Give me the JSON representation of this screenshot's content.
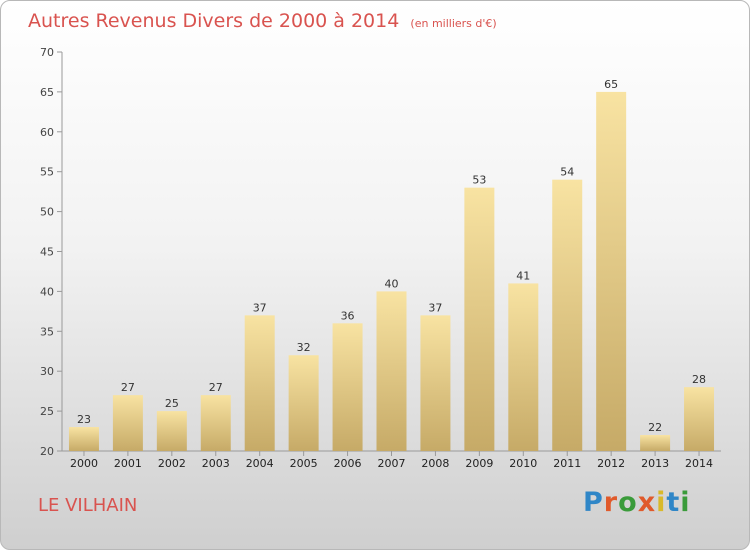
{
  "chart_data": {
    "type": "bar",
    "title": "Autres Revenus Divers de 2000 à 2014",
    "subtitle": "(en milliers d'€)",
    "categories": [
      "2000",
      "2001",
      "2002",
      "2003",
      "2004",
      "2005",
      "2006",
      "2007",
      "2008",
      "2009",
      "2010",
      "2011",
      "2012",
      "2013",
      "2014"
    ],
    "values": [
      23,
      27,
      25,
      27,
      37,
      32,
      36,
      40,
      37,
      53,
      41,
      54,
      65,
      22,
      28
    ],
    "ylim": [
      20,
      70
    ],
    "yticks": [
      20,
      25,
      30,
      35,
      40,
      45,
      50,
      55,
      60,
      65,
      70
    ],
    "grid": false,
    "xlabel": "",
    "ylabel": ""
  },
  "footer": {
    "town": "LE VILHAIN",
    "logo": "Proxiti"
  },
  "colors": {
    "title": "#d9534f",
    "bar_light": "#f8e3a2",
    "bar_dark": "#c6aa67"
  }
}
